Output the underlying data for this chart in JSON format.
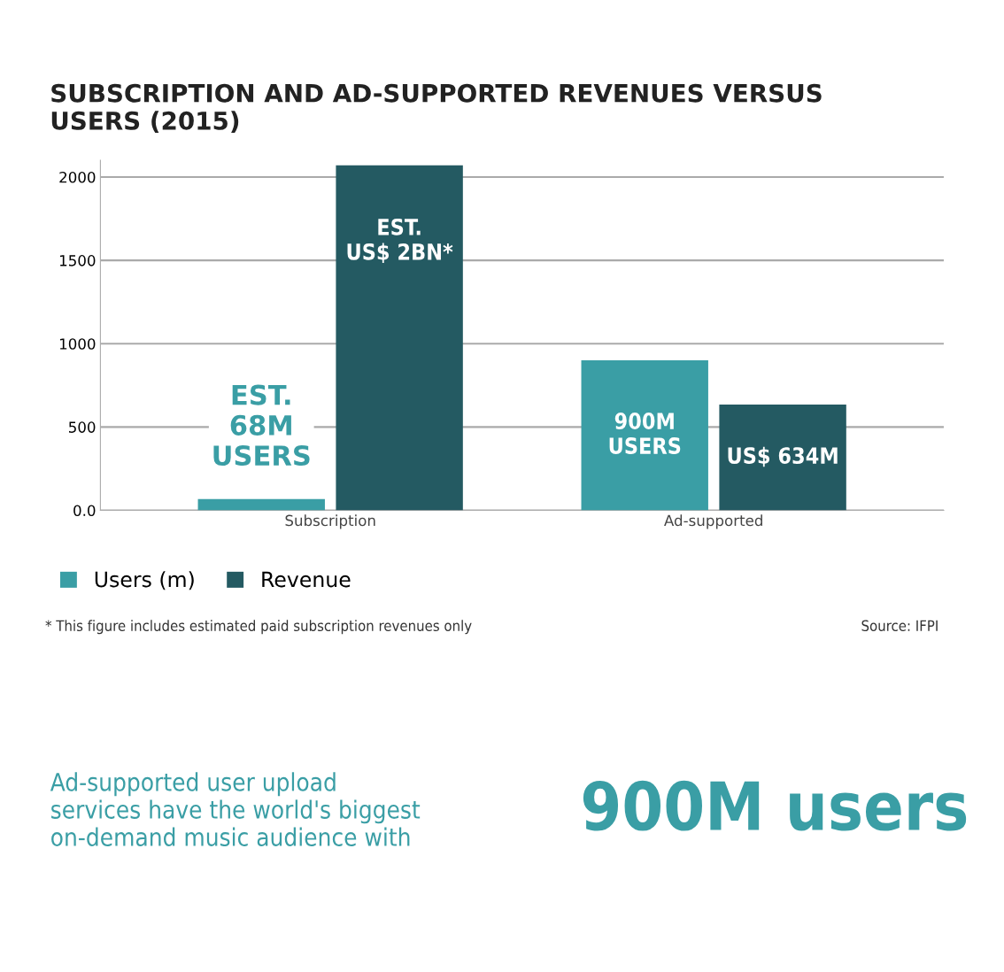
{
  "chart_data": {
    "type": "bar",
    "title": "SUBSCRIPTION AND AD-SUPPORTED REVENUES VERSUS\nUSERS (2015)",
    "categories": [
      "Subscription",
      "Ad-supported"
    ],
    "series": [
      {
        "name": "Users (m)",
        "color": "#3a9ea5",
        "values": [
          68,
          900
        ],
        "value_labels": [
          "EST.\n68M\nUSERS",
          "900M\nUSERS"
        ]
      },
      {
        "name": "Revenue",
        "color": "#245a62",
        "values": [
          2070,
          634
        ],
        "value_labels": [
          "EST.\nUS$ 2BN*",
          "US$ 634M"
        ]
      }
    ],
    "ylim": [
      0,
      2100
    ],
    "yticks": [
      {
        "value": 0,
        "label": "0.0"
      },
      500,
      1000,
      1500,
      2000
    ],
    "grid": "y",
    "legend": "bottom left",
    "annotations": [
      "* This figure includes estimated paid subscription revenues only",
      "Source: IFPI",
      "Ad-supported user upload\nservices have the world's biggest\non-demand music audience with",
      "900M users"
    ]
  }
}
